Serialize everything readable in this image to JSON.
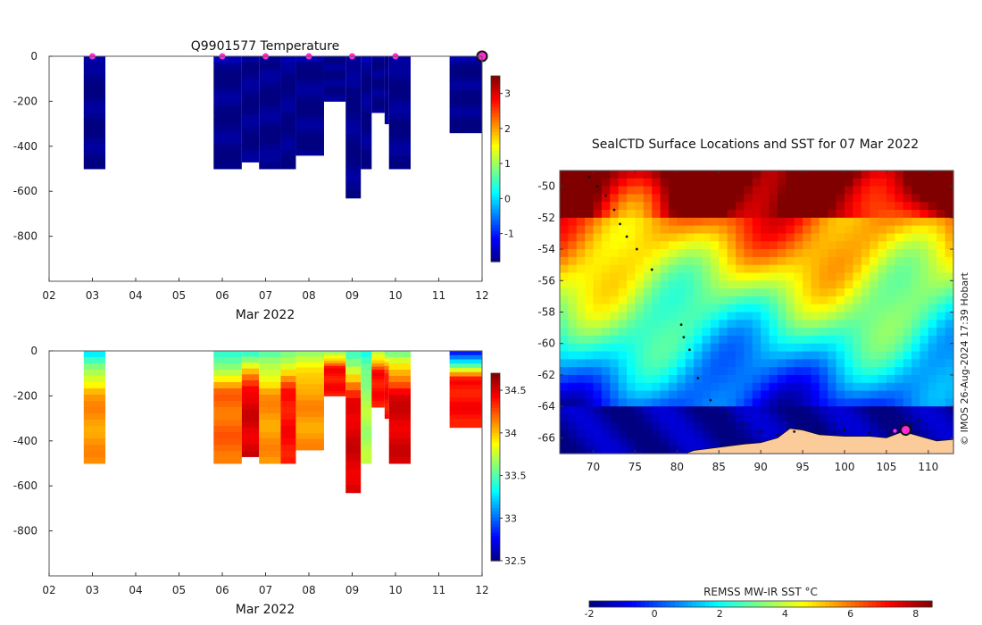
{
  "chart_data": [
    {
      "id": "temperature",
      "type": "heatmap",
      "title": "Q9901577  Temperature",
      "xlabel": "Mar 2022",
      "xticks": [
        "02",
        "03",
        "04",
        "05",
        "06",
        "07",
        "08",
        "09",
        "10",
        "11",
        "12"
      ],
      "xlim": [
        2,
        12
      ],
      "ylim": [
        -1000,
        0
      ],
      "yticks": [
        0,
        -200,
        -400,
        -600,
        -800
      ],
      "colorbar": {
        "min": -1.8,
        "max": 3.5,
        "ticks": [
          -1,
          0,
          1,
          2,
          3
        ],
        "palette": "jet"
      },
      "profile_markers_x": [
        3.0,
        6.0,
        7.0,
        8.0,
        9.0,
        10.0
      ],
      "current_marker_x": 12.0,
      "profiles": [
        {
          "x0": 2.8,
          "x1": 3.3,
          "depth": 500
        },
        {
          "x0": 5.8,
          "x1": 6.45,
          "depth": 500
        },
        {
          "x0": 6.45,
          "x1": 6.85,
          "depth": 470
        },
        {
          "x0": 6.85,
          "x1": 7.35,
          "depth": 500
        },
        {
          "x0": 7.35,
          "x1": 7.7,
          "depth": 500
        },
        {
          "x0": 7.7,
          "x1": 8.35,
          "depth": 440
        },
        {
          "x0": 8.35,
          "x1": 8.85,
          "depth": 200
        },
        {
          "x0": 8.85,
          "x1": 9.2,
          "depth": 630
        },
        {
          "x0": 9.2,
          "x1": 9.45,
          "depth": 500
        },
        {
          "x0": 9.45,
          "x1": 9.75,
          "depth": 250
        },
        {
          "x0": 9.75,
          "x1": 9.85,
          "depth": 300
        },
        {
          "x0": 9.85,
          "x1": 10.35,
          "depth": 500
        },
        {
          "x0": 11.25,
          "x1": 12.0,
          "depth": 340
        }
      ]
    },
    {
      "id": "salinity",
      "type": "heatmap",
      "xlabel": "Mar 2022",
      "xticks": [
        "02",
        "03",
        "04",
        "05",
        "06",
        "07",
        "08",
        "09",
        "10",
        "11",
        "12"
      ],
      "xlim": [
        2,
        12
      ],
      "ylim": [
        -1000,
        0
      ],
      "yticks": [
        0,
        -200,
        -400,
        -600,
        -800
      ],
      "colorbar": {
        "min": 32.5,
        "max": 34.7,
        "ticks": [
          32.5,
          33,
          33.5,
          34,
          34.5
        ],
        "palette": "jet"
      },
      "profiles": [
        {
          "x0": 2.8,
          "x1": 3.3,
          "depth": 500,
          "surf": 33.3,
          "deep": 34.1
        },
        {
          "x0": 5.8,
          "x1": 6.45,
          "depth": 500,
          "surf": 33.4,
          "deep": 34.2
        },
        {
          "x0": 6.45,
          "x1": 6.85,
          "depth": 470,
          "surf": 33.5,
          "deep": 34.5
        },
        {
          "x0": 6.85,
          "x1": 7.35,
          "depth": 500,
          "surf": 33.5,
          "deep": 34.1
        },
        {
          "x0": 7.35,
          "x1": 7.7,
          "depth": 500,
          "surf": 33.6,
          "deep": 34.4
        },
        {
          "x0": 7.7,
          "x1": 8.35,
          "depth": 440,
          "surf": 33.7,
          "deep": 34.1
        },
        {
          "x0": 8.35,
          "x1": 8.85,
          "depth": 200,
          "surf": 33.6,
          "deep": 34.4
        },
        {
          "x0": 8.85,
          "x1": 9.2,
          "depth": 630,
          "surf": 33.5,
          "deep": 34.5
        },
        {
          "x0": 9.2,
          "x1": 9.45,
          "depth": 500,
          "surf": 33.4,
          "deep": 33.7
        },
        {
          "x0": 9.45,
          "x1": 9.75,
          "depth": 250,
          "surf": 33.7,
          "deep": 34.4
        },
        {
          "x0": 9.75,
          "x1": 9.85,
          "depth": 300,
          "surf": 33.6,
          "deep": 34.4
        },
        {
          "x0": 9.85,
          "x1": 10.35,
          "depth": 500,
          "surf": 33.6,
          "deep": 34.5
        },
        {
          "x0": 11.25,
          "x1": 12.0,
          "depth": 340,
          "surf": 32.8,
          "deep": 34.4
        }
      ]
    },
    {
      "id": "sst_map",
      "type": "heatmap",
      "title": "SealCTD Surface Locations and SST for 07 Mar 2022",
      "xticks": [
        70,
        75,
        80,
        85,
        90,
        95,
        100,
        105,
        110
      ],
      "yticks": [
        -50,
        -52,
        -54,
        -56,
        -58,
        -60,
        -62,
        -64,
        -66
      ],
      "xlim": [
        66,
        113
      ],
      "ylim": [
        -67,
        -49
      ],
      "colorbar_label": "REMSS MW-IR SST °C",
      "colorbar": {
        "min": -2,
        "max": 8.5,
        "ticks": [
          -2,
          0,
          2,
          4,
          6,
          8
        ],
        "palette": "jet"
      },
      "track": [
        [
          69.5,
          -49.4
        ],
        [
          70.5,
          -50
        ],
        [
          71.5,
          -50.6
        ],
        [
          72.5,
          -51.5
        ],
        [
          73.2,
          -52.4
        ],
        [
          74,
          -53.2
        ],
        [
          75.2,
          -54
        ],
        [
          77,
          -55.3
        ],
        [
          80.5,
          -58.8
        ],
        [
          80.8,
          -59.6
        ],
        [
          81.5,
          -60.4
        ],
        [
          82.5,
          -62.2
        ],
        [
          84,
          -63.6
        ],
        [
          86,
          -64.5
        ],
        [
          88,
          -65.2
        ],
        [
          90,
          -65.6
        ],
        [
          92,
          -65.8
        ],
        [
          94,
          -65.6
        ],
        [
          97,
          -65.4
        ],
        [
          100,
          -65.5
        ],
        [
          103,
          -65.7
        ],
        [
          105.5,
          -65.8
        ],
        [
          106.8,
          -65.6
        ],
        [
          108,
          -65.2
        ],
        [
          109,
          -64.9
        ]
      ],
      "current_position": [
        107.3,
        -65.5
      ],
      "credit": "© IMOS 26-Aug-2024 17:39 Hobart"
    }
  ]
}
